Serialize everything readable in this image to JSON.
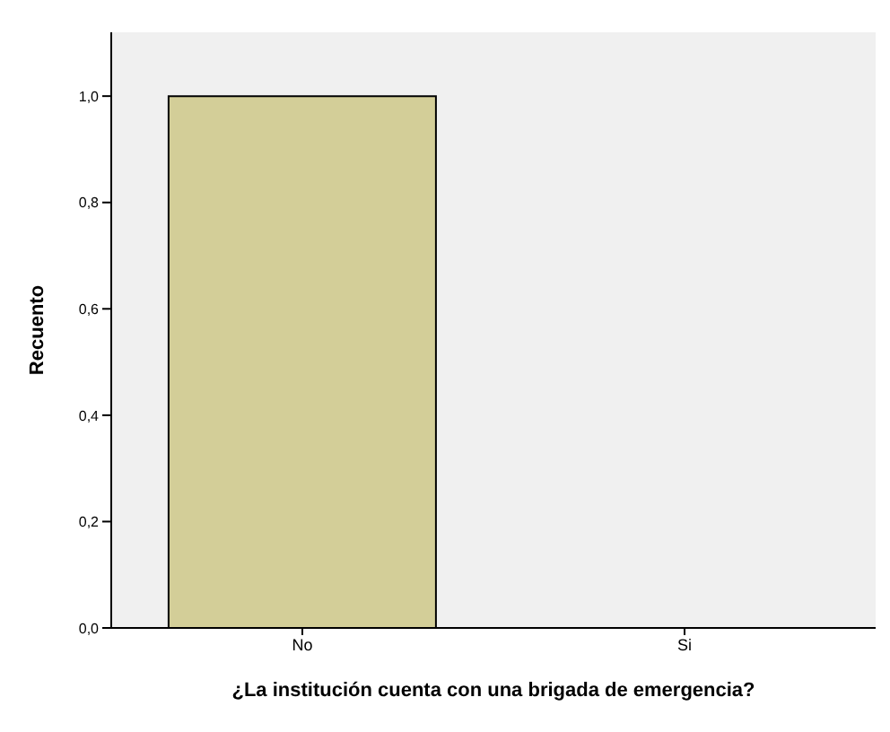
{
  "chart_data": {
    "type": "bar",
    "xlabel": "¿La institución cuenta con una brigada de emergencia?",
    "ylabel": "Recuento",
    "categories": [
      "No",
      "Si"
    ],
    "values": [
      1,
      0
    ],
    "color": "#d3ce98",
    "ylim": [
      0,
      1.12
    ],
    "yticks": [
      {
        "value": 0,
        "label": "0,0"
      },
      {
        "value": 0.2,
        "label": "0,2"
      },
      {
        "value": 0.4,
        "label": "0,4"
      },
      {
        "value": 0.6,
        "label": "0,6"
      },
      {
        "value": 0.8,
        "label": "0,8"
      },
      {
        "value": 1,
        "label": "1,0"
      }
    ]
  }
}
